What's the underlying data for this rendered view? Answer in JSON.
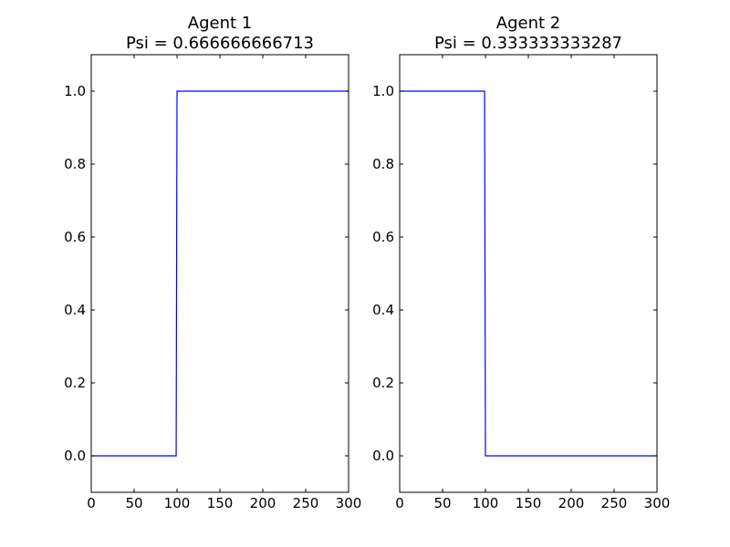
{
  "chart_data": [
    {
      "type": "line",
      "title": [
        "Agent 1",
        "Psi = 0.666666666713"
      ],
      "xlim": [
        0,
        300
      ],
      "ylim": [
        -0.1,
        1.1
      ],
      "xticks": [
        0,
        50,
        100,
        150,
        200,
        250,
        300
      ],
      "yticks": [
        0.0,
        0.2,
        0.4,
        0.6,
        0.8,
        1.0
      ],
      "xticklabels": [
        "0",
        "50",
        "100",
        "150",
        "200",
        "250",
        "300"
      ],
      "yticklabels": [
        "0.0",
        "0.2",
        "0.4",
        "0.6",
        "0.8",
        "1.0"
      ],
      "grid": false,
      "series": [
        {
          "x": [
            0,
            99,
            100,
            300
          ],
          "y": [
            0,
            0,
            1,
            1
          ]
        }
      ]
    },
    {
      "type": "line",
      "title": [
        "Agent 2",
        "Psi = 0.333333333287"
      ],
      "xlim": [
        0,
        300
      ],
      "ylim": [
        -0.1,
        1.1
      ],
      "xticks": [
        0,
        50,
        100,
        150,
        200,
        250,
        300
      ],
      "yticks": [
        0.0,
        0.2,
        0.4,
        0.6,
        0.8,
        1.0
      ],
      "xticklabels": [
        "0",
        "50",
        "100",
        "150",
        "200",
        "250",
        "300"
      ],
      "yticklabels": [
        "0.0",
        "0.2",
        "0.4",
        "0.6",
        "0.8",
        "1.0"
      ],
      "grid": false,
      "series": [
        {
          "x": [
            0,
            99,
            100,
            300
          ],
          "y": [
            1,
            1,
            0,
            0
          ]
        }
      ]
    }
  ],
  "colors": {
    "line": "#0000ff",
    "axes": "#000000",
    "background": "#ffffff"
  }
}
